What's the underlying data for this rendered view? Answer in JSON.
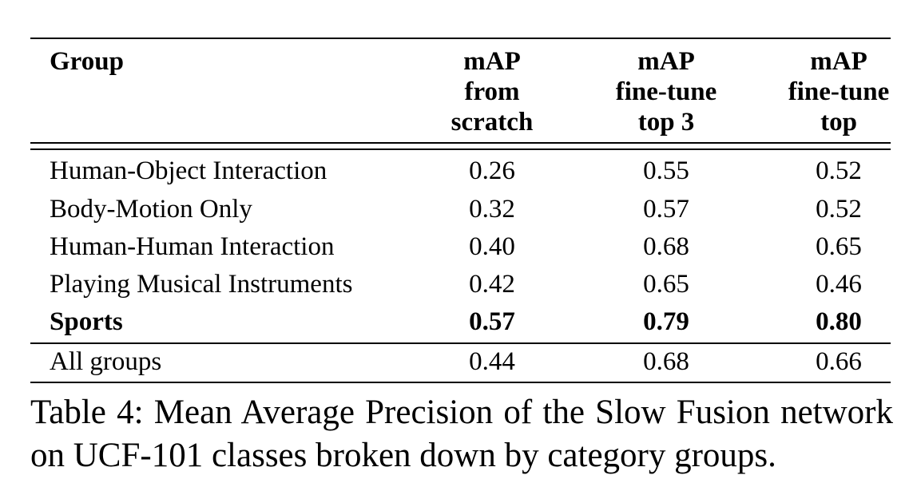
{
  "table": {
    "columns": [
      {
        "lines": [
          "Group"
        ]
      },
      {
        "lines": [
          "mAP",
          "from",
          "scratch"
        ]
      },
      {
        "lines": [
          "mAP",
          "fine-tune",
          "top 3"
        ]
      },
      {
        "lines": [
          "mAP",
          "fine-tune",
          "top"
        ]
      }
    ],
    "rows": [
      {
        "group": "Human-Object Interaction",
        "scratch": "0.26",
        "top3": "0.55",
        "top": "0.52"
      },
      {
        "group": "Body-Motion Only",
        "scratch": "0.32",
        "top3": "0.57",
        "top": "0.52"
      },
      {
        "group": "Human-Human Interaction",
        "scratch": "0.40",
        "top3": "0.68",
        "top": "0.65"
      },
      {
        "group": "Playing Musical Instruments",
        "scratch": "0.42",
        "top3": "0.65",
        "top": "0.46"
      },
      {
        "group": "Sports",
        "scratch": "0.57",
        "top3": "0.79",
        "top": "0.80",
        "bold": true
      }
    ],
    "total": {
      "group": "All groups",
      "scratch": "0.44",
      "top3": "0.68",
      "top": "0.66"
    }
  },
  "caption": "Table 4: Mean Average Precision of the Slow Fusion network on UCF-101 classes broken down by category groups."
}
